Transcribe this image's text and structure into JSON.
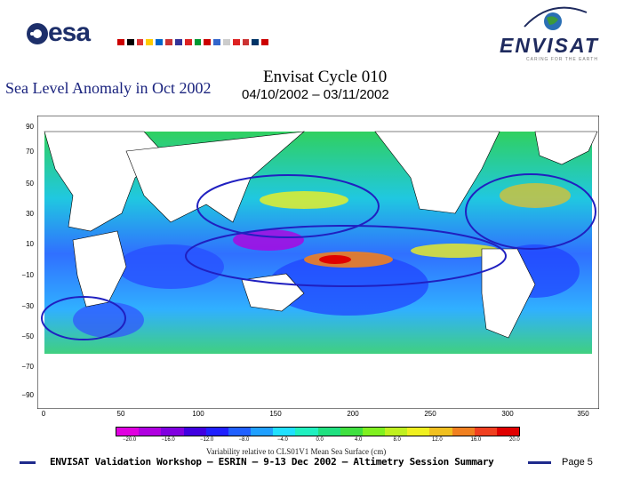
{
  "header": {
    "esa_logo_text": "esa",
    "envisat_logo_text": "ENVISAT",
    "envisat_tagline": "CARING FOR THE EARTH"
  },
  "slide": {
    "title": "Sea Level Anomaly in Oct 2002",
    "cycle_title": "Envisat Cycle 010",
    "cycle_dates": "04/10/2002 – 03/11/2002"
  },
  "map": {
    "y_ticks": [
      "90",
      "70",
      "50",
      "30",
      "10",
      "−10",
      "−30",
      "−50",
      "−70",
      "−90"
    ],
    "x_ticks": [
      "0",
      "50",
      "100",
      "150",
      "200",
      "250",
      "300",
      "350"
    ],
    "caption": "Variability relative to CLS01V1 Mean Sea Surface (cm)",
    "colorbar_labels": [
      "−20.0",
      "−16.0",
      "−12.0",
      "−8.0",
      "−4.0",
      "0.0",
      "4.0",
      "8.0",
      "12.0",
      "16.0",
      "20.0"
    ],
    "colorbar_colors": [
      "#e000e0",
      "#b000e0",
      "#8000e0",
      "#4000e0",
      "#2020ff",
      "#2060ff",
      "#20a0ff",
      "#20e0ff",
      "#20f0c0",
      "#20e080",
      "#40e040",
      "#80f020",
      "#c0f020",
      "#f0f020",
      "#f0c020",
      "#f08020",
      "#f04020",
      "#e00000"
    ]
  },
  "footer": {
    "text": "ENVISAT Validation Workshop – ESRIN – 9-13 Dec 2002 – Altimetry Session Summary",
    "page": "Page 5"
  }
}
